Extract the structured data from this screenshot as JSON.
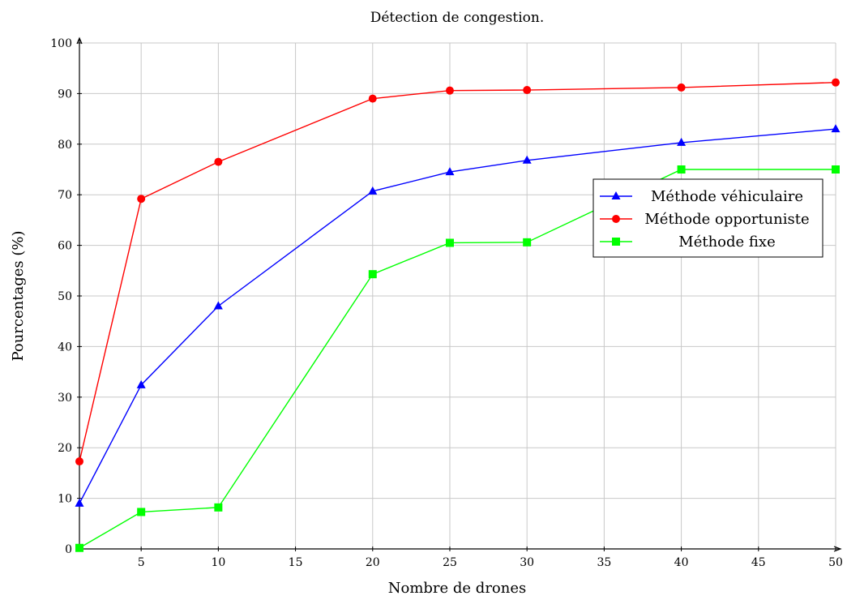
{
  "chart_data": {
    "type": "line",
    "title": "Détection de congestion.",
    "xlabel": "Nombre de drones",
    "ylabel": "Pourcentages (%)",
    "xlim": [
      1,
      50
    ],
    "ylim": [
      0,
      100
    ],
    "xticks": [
      5,
      10,
      15,
      20,
      25,
      30,
      35,
      40,
      45,
      50
    ],
    "yticks": [
      0,
      10,
      20,
      30,
      40,
      50,
      60,
      70,
      80,
      90,
      100
    ],
    "grid": true,
    "legend_position": "right",
    "series": [
      {
        "name": "Méthode véhiculaire",
        "color": "#0000ff",
        "marker": "triangle",
        "x": [
          1,
          5,
          10,
          20,
          25,
          30,
          40,
          50
        ],
        "y": [
          9,
          32.4,
          48,
          70.7,
          74.5,
          76.8,
          80.3,
          83
        ]
      },
      {
        "name": "Méthode opportuniste",
        "color": "#ff0000",
        "marker": "circle",
        "x": [
          1,
          5,
          10,
          20,
          25,
          30,
          40,
          50
        ],
        "y": [
          17.3,
          69.2,
          76.5,
          89,
          90.6,
          90.7,
          91.2,
          92.2
        ]
      },
      {
        "name": "Méthode fixe",
        "color": "#00ff00",
        "marker": "square",
        "x": [
          1,
          5,
          10,
          20,
          25,
          30,
          40,
          50
        ],
        "y": [
          0.2,
          7.3,
          8.2,
          54.3,
          60.5,
          60.6,
          75,
          75
        ]
      }
    ]
  }
}
